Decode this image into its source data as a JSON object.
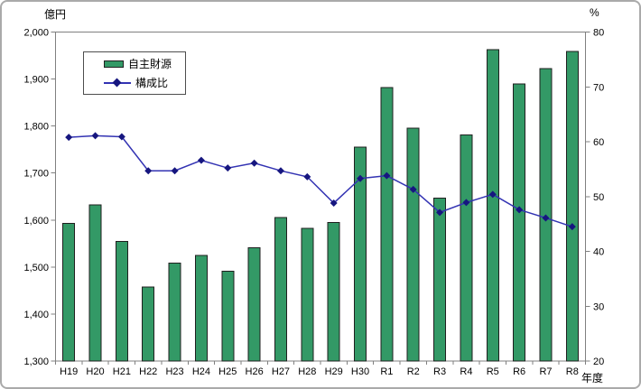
{
  "chart_data": {
    "type": "bar",
    "combo": "bar+line",
    "categories": [
      "H19",
      "H20",
      "H21",
      "H22",
      "H23",
      "H24",
      "H25",
      "H26",
      "H27",
      "H28",
      "H29",
      "H30",
      "R1",
      "R2",
      "R3",
      "R4",
      "R5",
      "R6",
      "R7",
      "R8"
    ],
    "series": [
      {
        "name": "自主財源",
        "type": "bar",
        "axis": "left",
        "unit": "億円",
        "values": [
          1593,
          1632,
          1554,
          1457,
          1508,
          1525,
          1491,
          1541,
          1605,
          1582,
          1595,
          1755,
          1882,
          1795,
          1647,
          1781,
          1963,
          1890,
          1922,
          1959
        ],
        "fill": "#339966",
        "stroke": "#1f1f1f"
      },
      {
        "name": "構成比",
        "type": "line",
        "axis": "right",
        "unit": "%",
        "values": [
          60.8,
          61.1,
          60.9,
          54.7,
          54.7,
          56.6,
          55.2,
          56.1,
          54.7,
          53.6,
          48.8,
          53.3,
          53.8,
          51.3,
          47.1,
          48.9,
          50.4,
          47.6,
          46.1,
          44.5
        ],
        "color": "#3333b3",
        "marker": "diamond",
        "marker_color": "#16167f"
      }
    ],
    "left_axis": {
      "title": "億円",
      "min": 1300,
      "max": 2000,
      "step": 100,
      "labels": [
        "1,300",
        "1,400",
        "1,500",
        "1,600",
        "1,700",
        "1,800",
        "1,900",
        "2,000"
      ]
    },
    "right_axis": {
      "title": "%",
      "min": 20,
      "max": 80,
      "step": 10,
      "labels": [
        "20",
        "30",
        "40",
        "50",
        "60",
        "70",
        "80"
      ]
    },
    "x_axis": {
      "title": "年度"
    },
    "legend": {
      "position": "top-left-inside"
    },
    "grid": false,
    "plot_background": "#ffffff",
    "axis_color": "#808080",
    "text_color": "#000000"
  }
}
